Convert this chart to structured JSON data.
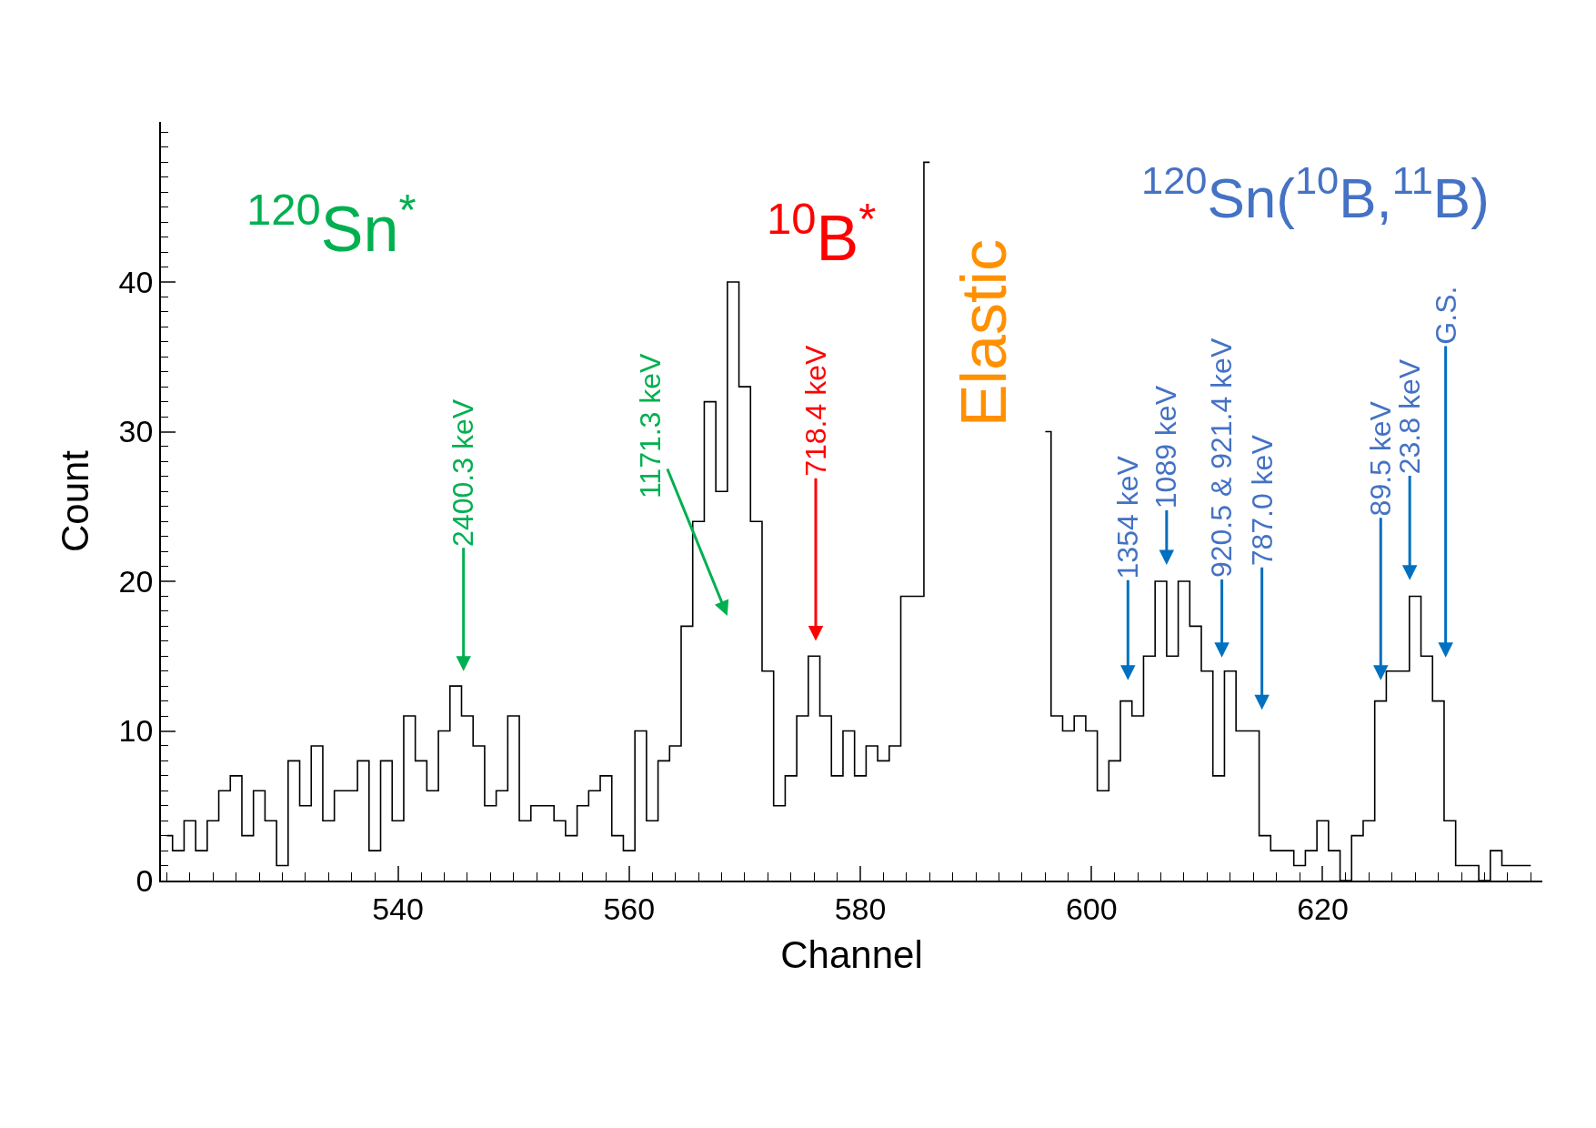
{
  "chart_data": {
    "type": "step",
    "xlabel": "Channel",
    "ylabel": "Count",
    "x": [
      520,
      521,
      522,
      523,
      524,
      525,
      526,
      527,
      528,
      529,
      530,
      531,
      532,
      533,
      534,
      535,
      536,
      537,
      538,
      539,
      540,
      541,
      542,
      543,
      544,
      545,
      546,
      547,
      548,
      549,
      550,
      551,
      552,
      553,
      554,
      555,
      556,
      557,
      558,
      559,
      560,
      561,
      562,
      563,
      564,
      565,
      566,
      567,
      568,
      569,
      570,
      571,
      572,
      573,
      574,
      575,
      576,
      577,
      578,
      579,
      580,
      581,
      582,
      583,
      584,
      585,
      586,
      587,
      588,
      589,
      590,
      591,
      592,
      593,
      594,
      595,
      596,
      597,
      598,
      599,
      600,
      601,
      602,
      603,
      604,
      605,
      606,
      607,
      608,
      609,
      610,
      611,
      612,
      613,
      614,
      615,
      616,
      617,
      618,
      619,
      620,
      621,
      622,
      623,
      624,
      625,
      626,
      627,
      628,
      629,
      630,
      631,
      632,
      633,
      634,
      635,
      636,
      637,
      638
    ],
    "values": [
      3,
      2,
      4,
      2,
      4,
      6,
      7,
      3,
      6,
      4,
      1,
      8,
      5,
      9,
      4,
      6,
      6,
      8,
      2,
      8,
      4,
      11,
      8,
      6,
      10,
      13,
      11,
      9,
      5,
      6,
      11,
      4,
      5,
      5,
      4,
      3,
      5,
      6,
      7,
      3,
      2,
      10,
      4,
      8,
      9,
      17,
      24,
      32,
      26,
      40,
      33,
      24,
      14,
      5,
      7,
      11,
      15,
      11,
      7,
      10,
      7,
      9,
      8,
      9,
      19,
      19,
      48,
      null,
      null,
      null,
      null,
      null,
      null,
      null,
      null,
      null,
      30,
      11,
      10,
      11,
      10,
      6,
      8,
      12,
      11,
      15,
      20,
      15,
      20,
      17,
      14,
      7,
      14,
      10,
      10,
      3,
      2,
      2,
      1,
      2,
      4,
      2,
      0,
      3,
      4,
      12,
      14,
      14,
      19,
      15,
      12,
      4,
      1,
      1,
      0,
      2,
      1,
      1,
      1
    ],
    "color": "#000000",
    "xlim": [
      519.5,
      639
    ],
    "ylim": [
      0,
      50.7
    ],
    "xticks": [
      {
        "value": 520,
        "label": null
      },
      {
        "value": 522,
        "label": null
      },
      {
        "value": 524,
        "label": null
      },
      {
        "value": 526,
        "label": null
      },
      {
        "value": 528,
        "label": null
      },
      {
        "value": 530,
        "label": null
      },
      {
        "value": 532,
        "label": null
      },
      {
        "value": 534,
        "label": null
      },
      {
        "value": 536,
        "label": null
      },
      {
        "value": 538,
        "label": null
      },
      540,
      {
        "value": 542,
        "label": null
      },
      {
        "value": 544,
        "label": null
      },
      {
        "value": 546,
        "label": null
      },
      {
        "value": 548,
        "label": null
      },
      {
        "value": 550,
        "label": null
      },
      {
        "value": 552,
        "label": null
      },
      {
        "value": 554,
        "label": null
      },
      {
        "value": 556,
        "label": null
      },
      {
        "value": 558,
        "label": null
      },
      560,
      {
        "value": 562,
        "label": null
      },
      {
        "value": 564,
        "label": null
      },
      {
        "value": 566,
        "label": null
      },
      {
        "value": 568,
        "label": null
      },
      {
        "value": 570,
        "label": null
      },
      {
        "value": 572,
        "label": null
      },
      {
        "value": 574,
        "label": null
      },
      {
        "value": 576,
        "label": null
      },
      {
        "value": 578,
        "label": null
      },
      580,
      {
        "value": 582,
        "label": null
      },
      {
        "value": 584,
        "label": null
      },
      {
        "value": 586,
        "label": null
      },
      {
        "value": 588,
        "label": null
      },
      {
        "value": 590,
        "label": null
      },
      {
        "value": 592,
        "label": null
      },
      {
        "value": 594,
        "label": null
      },
      {
        "value": 596,
        "label": null
      },
      {
        "value": 598,
        "label": null
      },
      600,
      {
        "value": 602,
        "label": null
      },
      {
        "value": 604,
        "label": null
      },
      {
        "value": 606,
        "label": null
      },
      {
        "value": 608,
        "label": null
      },
      {
        "value": 610,
        "label": null
      },
      {
        "value": 612,
        "label": null
      },
      {
        "value": 614,
        "label": null
      },
      {
        "value": 616,
        "label": null
      },
      {
        "value": 618,
        "label": null
      },
      620,
      {
        "value": 622,
        "label": null
      },
      {
        "value": 624,
        "label": null
      },
      {
        "value": 626,
        "label": null
      },
      {
        "value": 628,
        "label": null
      },
      {
        "value": 630,
        "label": null
      },
      {
        "value": 632,
        "label": null
      },
      {
        "value": 634,
        "label": null
      },
      {
        "value": 636,
        "label": null
      },
      {
        "value": 638,
        "label": null
      }
    ],
    "yticks": [
      0,
      {
        "value": 1,
        "label": null
      },
      {
        "value": 2,
        "label": null
      },
      {
        "value": 3,
        "label": null
      },
      {
        "value": 4,
        "label": null
      },
      {
        "value": 5,
        "label": null
      },
      {
        "value": 6,
        "label": null
      },
      {
        "value": 7,
        "label": null
      },
      {
        "value": 8,
        "label": null
      },
      {
        "value": 9,
        "label": null
      },
      10,
      {
        "value": 11,
        "label": null
      },
      {
        "value": 12,
        "label": null
      },
      {
        "value": 13,
        "label": null
      },
      {
        "value": 14,
        "label": null
      },
      {
        "value": 15,
        "label": null
      },
      {
        "value": 16,
        "label": null
      },
      {
        "value": 17,
        "label": null
      },
      {
        "value": 18,
        "label": null
      },
      {
        "value": 19,
        "label": null
      },
      20,
      {
        "value": 21,
        "label": null
      },
      {
        "value": 22,
        "label": null
      },
      {
        "value": 23,
        "label": null
      },
      {
        "value": 24,
        "label": null
      },
      {
        "value": 25,
        "label": null
      },
      {
        "value": 26,
        "label": null
      },
      {
        "value": 27,
        "label": null
      },
      {
        "value": 28,
        "label": null
      },
      {
        "value": 29,
        "label": null
      },
      30,
      {
        "value": 31,
        "label": null
      },
      {
        "value": 32,
        "label": null
      },
      {
        "value": 33,
        "label": null
      },
      {
        "value": 34,
        "label": null
      },
      {
        "value": 35,
        "label": null
      },
      {
        "value": 36,
        "label": null
      },
      {
        "value": 37,
        "label": null
      },
      {
        "value": 38,
        "label": null
      },
      {
        "value": 39,
        "label": null
      },
      40,
      {
        "value": 41,
        "label": null
      },
      {
        "value": 42,
        "label": null
      },
      {
        "value": 43,
        "label": null
      },
      {
        "value": 44,
        "label": null
      },
      {
        "value": 45,
        "label": null
      },
      {
        "value": 46,
        "label": null
      },
      {
        "value": 47,
        "label": null
      },
      {
        "value": 48,
        "label": null
      },
      {
        "value": 49,
        "label": null
      },
      {
        "value": 50,
        "label": null
      }
    ],
    "annotations": [
      "2400.3 keV",
      "1171.3 keV",
      "718.4 keV",
      "1354 keV",
      "1089 keV",
      "920.5 & 921.4 keV",
      "787.0 keV",
      "89.5 keV",
      "23.8 keV",
      "G.S.",
      "$^{120}$Sn$^{*}$",
      "$^{10}$B$^{*}$",
      "Elastic",
      "$^{120}$Sn($^{10}$B,$^{11}$B)"
    ]
  }
}
